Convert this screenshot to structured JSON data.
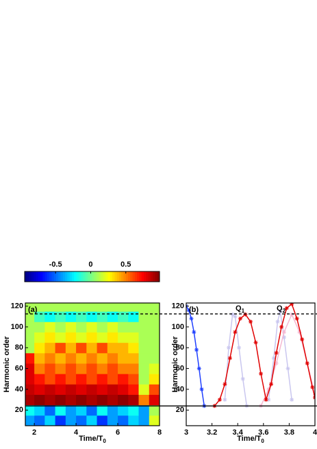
{
  "chart_data": [
    {
      "type": "heatmap",
      "panel_label": "(a)",
      "x_label": {
        "text": "Time/T",
        "sub": "0"
      },
      "y_label": "Harmonic order",
      "x": [
        1.75,
        2.25,
        2.75,
        3.25,
        3.75,
        4.25,
        4.75,
        5.25,
        5.75,
        6.25,
        6.75,
        7.25,
        7.75
      ],
      "y": [
        10,
        20,
        30,
        40,
        50,
        60,
        70,
        80,
        90,
        100,
        110,
        120
      ],
      "z": [
        [
          -0.4,
          -0.5,
          -0.3,
          -0.6,
          -0.4,
          -0.5,
          -0.3,
          -0.6,
          -0.4,
          -0.5,
          -0.3,
          -0.4,
          0.2
        ],
        [
          -0.2,
          -0.3,
          -0.5,
          -0.2,
          -0.4,
          -0.3,
          -0.5,
          -0.2,
          -0.4,
          -0.3,
          -0.2,
          -0.4,
          0.1
        ],
        [
          0.9,
          0.95,
          0.9,
          0.95,
          0.9,
          0.95,
          0.9,
          0.95,
          0.9,
          0.95,
          0.9,
          0.5,
          0.8
        ],
        [
          0.85,
          0.8,
          0.85,
          0.8,
          0.85,
          0.8,
          0.85,
          0.8,
          0.85,
          0.8,
          0.7,
          0.2,
          0.6
        ],
        [
          0.8,
          0.7,
          0.6,
          0.7,
          0.6,
          0.7,
          0.6,
          0.7,
          0.6,
          0.7,
          0.6,
          0.1,
          0.3
        ],
        [
          0.8,
          0.5,
          0.6,
          0.5,
          0.6,
          0.5,
          0.6,
          0.5,
          0.6,
          0.5,
          0.5,
          0.1,
          0.2
        ],
        [
          0.7,
          0.4,
          0.5,
          0.4,
          0.5,
          0.4,
          0.5,
          0.4,
          0.5,
          0.4,
          0.4,
          0.1,
          0.1
        ],
        [
          0.1,
          0.3,
          0.4,
          0.6,
          0.4,
          0.6,
          0.4,
          0.6,
          0.4,
          0.4,
          0.3,
          0.1,
          0.1
        ],
        [
          0.1,
          0.2,
          0.3,
          0.2,
          0.3,
          0.2,
          0.3,
          0.2,
          0.3,
          0.2,
          0.2,
          0.1,
          0.1
        ],
        [
          0.1,
          0.1,
          0.2,
          0.1,
          0.2,
          0.1,
          0.2,
          0.1,
          0.2,
          0.1,
          0.1,
          0.1,
          0.1
        ],
        [
          0.1,
          -0.1,
          -0.2,
          -0.1,
          -0.2,
          -0.1,
          -0.2,
          -0.1,
          -0.2,
          -0.1,
          -0.2,
          0.1,
          0.1
        ],
        [
          0.1,
          0.1,
          0.1,
          0.1,
          0.1,
          0.1,
          0.1,
          0.1,
          0.1,
          0.1,
          0.1,
          0.1,
          0.1
        ]
      ],
      "clim": [
        -0.94,
        0.98
      ],
      "cticks": [
        -0.5,
        0,
        0.5
      ],
      "colormap": "jet",
      "xlim": [
        1.57,
        8
      ],
      "xticks": [
        2,
        4,
        6,
        8
      ],
      "ylim": [
        5,
        123
      ],
      "yticks": [
        20,
        40,
        60,
        80,
        100,
        120
      ],
      "hlines": [
        {
          "value": 112.5,
          "style": "dashed"
        },
        {
          "value": 24,
          "style": "solid"
        }
      ]
    },
    {
      "type": "scatter",
      "panel_label": "(b)",
      "x_label": {
        "text": "Time/T",
        "sub": "0"
      },
      "y_label": "Harmonic order",
      "series": [
        {
          "color": "#c9c6ef",
          "x": [
            3.3,
            3.33,
            3.36,
            3.38,
            3.41,
            3.44,
            3.47,
            3.55,
            3.64,
            3.68,
            3.71,
            3.73,
            3.76,
            3.79,
            3.82
          ],
          "values": [
            30,
            80,
            112,
            110,
            80,
            50,
            24,
            null,
            30,
            70,
            105,
            115,
            90,
            60,
            30
          ]
        },
        {
          "color": "#f5b8d2",
          "x": [
            3.58,
            3.64,
            3.7,
            3.76,
            3.82,
            3.88,
            3.94,
            4.0
          ],
          "values": [
            24,
            40,
            65,
            95,
            112,
            95,
            65,
            35
          ]
        },
        {
          "color": "#1f3fff",
          "x": [
            3.0,
            3.02,
            3.04,
            3.06,
            3.08,
            3.1,
            3.12,
            3.14
          ],
          "values": [
            120,
            116,
            108,
            95,
            78,
            60,
            40,
            24
          ]
        },
        {
          "color": "#e00000",
          "x": [
            3.22,
            3.26,
            3.3,
            3.34,
            3.38,
            3.42,
            3.46,
            3.5,
            3.54,
            3.58,
            3.62,
            3.66,
            3.7,
            3.74,
            3.78,
            3.82,
            3.86,
            3.9,
            3.94,
            3.98,
            4.0
          ],
          "values": [
            24,
            30,
            45,
            70,
            95,
            108,
            112,
            105,
            85,
            55,
            30,
            45,
            75,
            100,
            118,
            122,
            108,
            88,
            65,
            42,
            32
          ]
        }
      ],
      "annotations": [
        {
          "text": "Q",
          "sub": "1"
        },
        {
          "text": "Q",
          "sub": "2"
        }
      ],
      "xlim": [
        3,
        4
      ],
      "xticks": [
        3,
        3.2,
        3.4,
        3.6,
        3.8,
        4
      ],
      "ylim": [
        5,
        123
      ],
      "yticks": [
        20,
        40,
        60,
        80,
        100,
        120
      ],
      "hlines": [
        {
          "value": 112.5,
          "style": "dashed"
        },
        {
          "value": 24,
          "style": "solid"
        }
      ]
    }
  ]
}
